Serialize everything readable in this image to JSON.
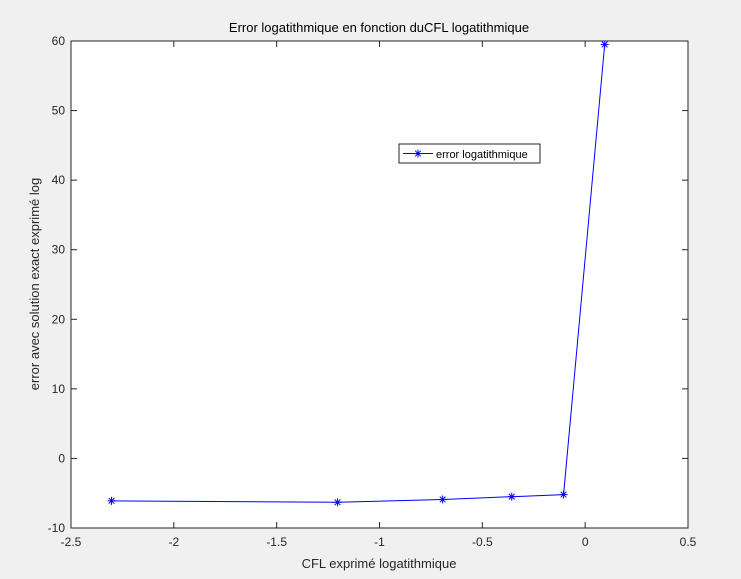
{
  "window": {
    "background": "#f0f0f0"
  },
  "chart_data": {
    "type": "line",
    "title": "Error logatithmique en fonction duCFL logatithmique",
    "xlabel": "CFL exprimé logatithmique",
    "ylabel": "error avec solution exact exprimé log",
    "xlim": [
      -2.5,
      0.5
    ],
    "ylim": [
      -10,
      60
    ],
    "xticks": [
      -2.5,
      -2,
      -1.5,
      -1,
      -0.5,
      0,
      0.5
    ],
    "xtick_labels": [
      "-2.5",
      "-2",
      "-1.5",
      "-1",
      "-0.5",
      "0",
      "0.5"
    ],
    "yticks": [
      -10,
      0,
      10,
      20,
      30,
      40,
      50,
      60
    ],
    "ytick_labels": [
      "-10",
      "0",
      "10",
      "20",
      "30",
      "40",
      "50",
      "60"
    ],
    "grid": false,
    "legend_position": "upper-center-right",
    "series": [
      {
        "name": "error logatithmique",
        "color": "#0000ff",
        "marker": "asterisk",
        "x": [
          -2.303,
          -1.204,
          -0.693,
          -0.357,
          -0.105,
          0.095
        ],
        "y": [
          -6.1,
          -6.3,
          -5.9,
          -5.5,
          -5.2,
          59.5
        ]
      }
    ],
    "colors": {
      "axes_bg": "#ffffff",
      "axis": "#262626",
      "series": "#0000ff"
    }
  }
}
